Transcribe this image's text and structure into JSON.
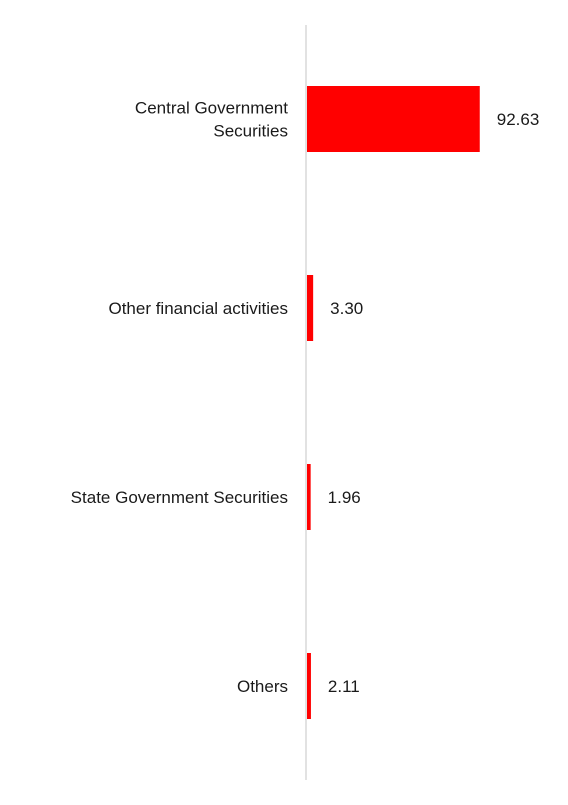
{
  "chart_data": {
    "type": "bar",
    "orientation": "horizontal",
    "categories": [
      [
        "Central Government",
        "Securities"
      ],
      [
        "Other financial activities"
      ],
      [
        "State Government Securities"
      ],
      [
        "Others"
      ]
    ],
    "values": [
      92.63,
      3.3,
      1.96,
      2.11
    ],
    "value_labels": [
      "92.63",
      "3.30",
      "1.96",
      "2.11"
    ],
    "xlim": [
      0,
      100
    ],
    "grid": false,
    "legend": "none",
    "colors": {
      "bar": "#ff0000",
      "axis": "#d9d9d9",
      "text": "#1a1a1a"
    }
  }
}
